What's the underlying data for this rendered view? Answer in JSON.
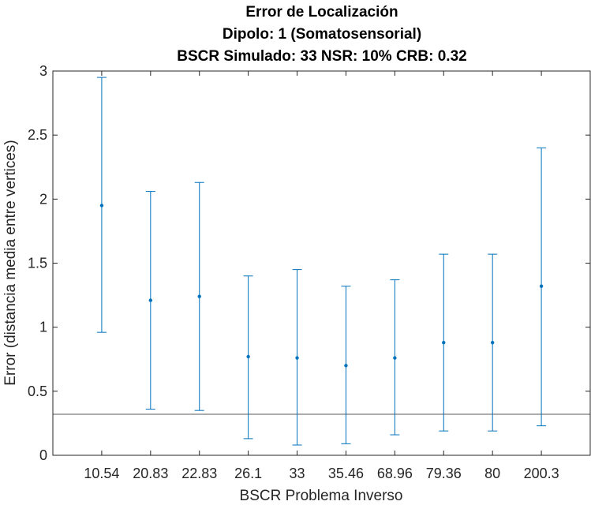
{
  "chart_data": {
    "type": "errorbar",
    "title_lines": [
      "Error de Localización",
      "Dipolo: 1 (Somatosensorial)",
      "BSCR Simulado: 33 NSR: 10% CRB: 0.32"
    ],
    "xlabel": "BSCR Problema Inverso",
    "ylabel": "Error (distancia media entre vertices)",
    "categories": [
      "10.54",
      "20.83",
      "22.83",
      "26.1",
      "33",
      "35.46",
      "68.96",
      "79.36",
      "80",
      "200.3"
    ],
    "series": [
      {
        "values": [
          1.95,
          1.21,
          1.24,
          0.77,
          0.76,
          0.7,
          0.76,
          0.88,
          0.88,
          1.32
        ],
        "lower": [
          0.96,
          0.36,
          0.35,
          0.13,
          0.08,
          0.09,
          0.16,
          0.19,
          0.19,
          0.23
        ],
        "upper": [
          2.95,
          2.06,
          2.13,
          1.4,
          1.45,
          1.32,
          1.37,
          1.57,
          1.57,
          2.4
        ]
      }
    ],
    "reference_line": {
      "y": 0.32
    },
    "ylim": [
      0,
      3
    ],
    "yticks": [
      "0",
      "0.5",
      "1",
      "1.5",
      "2",
      "2.5",
      "3"
    ],
    "grid": false,
    "colors": {
      "series": "#0072BD",
      "reference": "#5a5a5a",
      "axis": "#262626"
    }
  }
}
